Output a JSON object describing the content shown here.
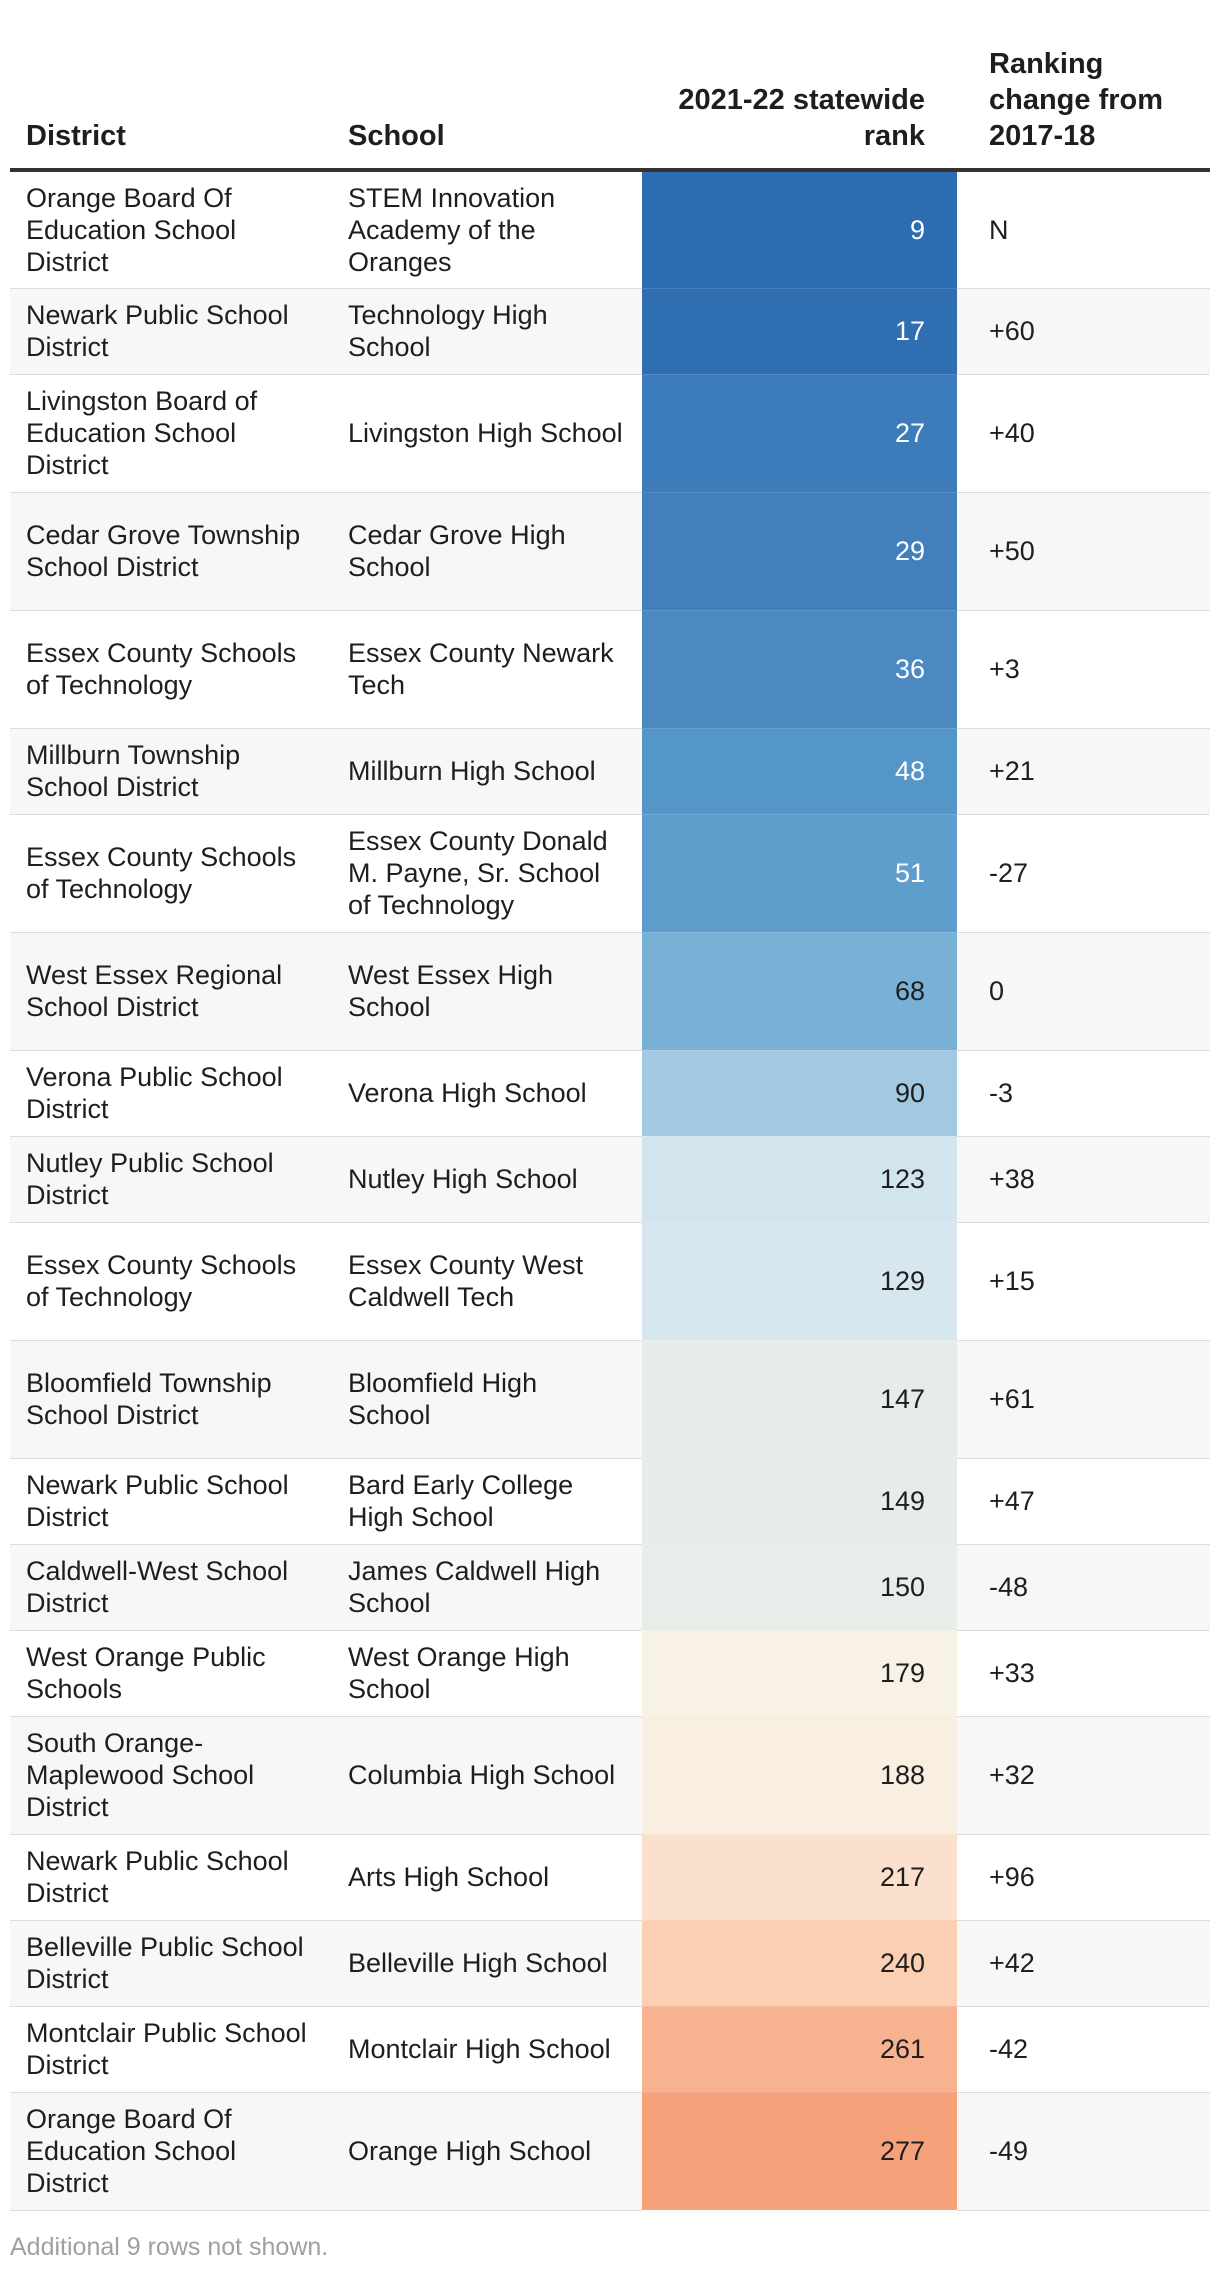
{
  "headers": {
    "district": "District",
    "school": "School",
    "rank": "2021-22 statewide rank",
    "change": "Ranking change from 2017-18"
  },
  "colors": {
    "rank_scale": [
      "#2d6cb0",
      "#2f6eb1",
      "#3c7cba",
      "#427fbc",
      "#4c89c1",
      "#5596c9",
      "#5d9ecd",
      "#78b0d6",
      "#a3c8e2",
      "#d2e5ef",
      "#d7e7ef",
      "#e6ecea",
      "#e7ece9",
      "#e9edea",
      "#f7f2e5",
      "#f9efe1",
      "#fbe0cd",
      "#fbcfb3",
      "#f7b390",
      "#f5a17a"
    ],
    "light_text": "#ffffff",
    "dark_text": "#1e1e1e"
  },
  "rows": [
    {
      "district": "Orange Board Of Education School District",
      "school": "STEM Innovation Academy of the Oranges",
      "rank": 9,
      "change": "N"
    },
    {
      "district": "Newark Public School District",
      "school": "Technology High School",
      "rank": 17,
      "change": "+60"
    },
    {
      "district": "Livingston Board of Education School District",
      "school": "Livingston High School",
      "rank": 27,
      "change": "+40"
    },
    {
      "district": "Cedar Grove Township School District",
      "school": "Cedar Grove High School",
      "rank": 29,
      "change": "+50"
    },
    {
      "district": "Essex County Schools of Technology",
      "school": "Essex County Newark Tech",
      "rank": 36,
      "change": "+3"
    },
    {
      "district": "Millburn Township School District",
      "school": "Millburn High School",
      "rank": 48,
      "change": "+21"
    },
    {
      "district": "Essex County Schools of Technology",
      "school": "Essex County Donald M. Payne, Sr. School of Technology",
      "rank": 51,
      "change": "-27"
    },
    {
      "district": "West Essex Regional School District",
      "school": "West Essex High School",
      "rank": 68,
      "change": "0"
    },
    {
      "district": "Verona Public School District",
      "school": "Verona High School",
      "rank": 90,
      "change": "-3"
    },
    {
      "district": "Nutley Public School District",
      "school": "Nutley High School",
      "rank": 123,
      "change": "+38"
    },
    {
      "district": "Essex County Schools of Technology",
      "school": "Essex County West Caldwell Tech",
      "rank": 129,
      "change": "+15"
    },
    {
      "district": "Bloomfield Township School District",
      "school": "Bloomfield High School",
      "rank": 147,
      "change": "+61"
    },
    {
      "district": "Newark Public School District",
      "school": "Bard Early College High School",
      "rank": 149,
      "change": "+47"
    },
    {
      "district": "Caldwell-West School District",
      "school": "James Caldwell High School",
      "rank": 150,
      "change": "-48"
    },
    {
      "district": "West Orange Public Schools",
      "school": "West Orange High School",
      "rank": 179,
      "change": "+33"
    },
    {
      "district": "South Orange-Maplewood School District",
      "school": "Columbia High School",
      "rank": 188,
      "change": "+32"
    },
    {
      "district": "Newark Public School District",
      "school": "Arts High School",
      "rank": 217,
      "change": "+96"
    },
    {
      "district": "Belleville Public School District",
      "school": "Belleville High School",
      "rank": 240,
      "change": "+42"
    },
    {
      "district": "Montclair Public School District",
      "school": "Montclair High School",
      "rank": 261,
      "change": "-42"
    },
    {
      "district": "Orange Board Of Education School District",
      "school": "Orange High School",
      "rank": 277,
      "change": "-49"
    }
  ],
  "footnote": "Additional 9 rows not shown."
}
